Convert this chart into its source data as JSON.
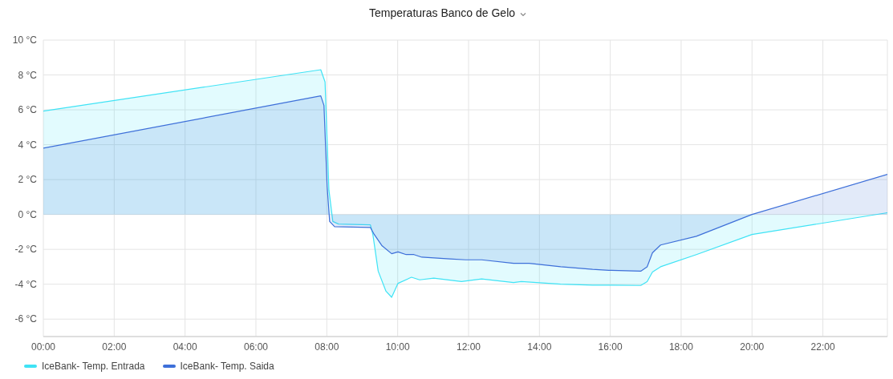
{
  "chart_data": {
    "type": "area",
    "title": "Temperaturas Banco de Gelo",
    "xlim": [
      0,
      23.82
    ],
    "xticks": [
      {
        "value": 0,
        "label": "00:00"
      },
      {
        "value": 2,
        "label": "02:00"
      },
      {
        "value": 4,
        "label": "04:00"
      },
      {
        "value": 6,
        "label": "06:00"
      },
      {
        "value": 8,
        "label": "08:00"
      },
      {
        "value": 10,
        "label": "10:00"
      },
      {
        "value": 12,
        "label": "12:00"
      },
      {
        "value": 14,
        "label": "14:00"
      },
      {
        "value": 16,
        "label": "16:00"
      },
      {
        "value": 18,
        "label": "18:00"
      },
      {
        "value": 20,
        "label": "20:00"
      },
      {
        "value": 22,
        "label": "22:00"
      }
    ],
    "ylim": [
      -7,
      10
    ],
    "yticks": [
      {
        "value": -6,
        "label": "-6 °C"
      },
      {
        "value": -4,
        "label": "-4 °C"
      },
      {
        "value": -2,
        "label": "-2 °C"
      },
      {
        "value": 0,
        "label": "0 °C"
      },
      {
        "value": 2,
        "label": "2 °C"
      },
      {
        "value": 4,
        "label": "4 °C"
      },
      {
        "value": 6,
        "label": "6 °C"
      },
      {
        "value": 8,
        "label": "8 °C"
      },
      {
        "value": 10,
        "label": "10 °C"
      }
    ],
    "grid": true,
    "legend": "bottom left",
    "marker": "none",
    "line_style": "solid",
    "series": [
      {
        "name": "IceBank- Temp. Entrada",
        "color": "#3fe3f5",
        "x": [
          0,
          7.83,
          7.95,
          8.06,
          8.17,
          8.33,
          9.23,
          9.3,
          9.45,
          9.67,
          9.83,
          10.01,
          10.39,
          10.62,
          11.02,
          11.8,
          12.37,
          13.27,
          13.49,
          14.6,
          15.5,
          15.96,
          16.86,
          17.04,
          17.19,
          17.42,
          18.43,
          20.0,
          23.82
        ],
        "values": [
          5.93,
          8.3,
          7.6,
          1.4,
          -0.4,
          -0.55,
          -0.6,
          -1.15,
          -3.25,
          -4.4,
          -4.75,
          -3.95,
          -3.6,
          -3.75,
          -3.65,
          -3.85,
          -3.7,
          -3.9,
          -3.85,
          -4.0,
          -4.05,
          -4.05,
          -4.07,
          -3.85,
          -3.3,
          -3.0,
          -2.3,
          -1.15,
          0.1
        ]
      },
      {
        "name": "IceBank- Temp. Saida",
        "color": "#3d6fd9",
        "x": [
          0,
          7.83,
          7.92,
          8.01,
          8.08,
          8.22,
          9.23,
          9.34,
          9.56,
          9.83,
          10.01,
          10.24,
          10.46,
          10.68,
          11.47,
          11.92,
          12.37,
          13.27,
          13.71,
          14.6,
          15.5,
          15.96,
          16.86,
          17.04,
          17.19,
          17.42,
          18.43,
          20.0,
          23.82
        ],
        "values": [
          3.8,
          6.8,
          6.25,
          1.6,
          -0.4,
          -0.7,
          -0.75,
          -1.15,
          -1.8,
          -2.25,
          -2.15,
          -2.3,
          -2.3,
          -2.45,
          -2.55,
          -2.6,
          -2.6,
          -2.8,
          -2.8,
          -3.0,
          -3.15,
          -3.2,
          -3.25,
          -3.0,
          -2.2,
          -1.75,
          -1.25,
          0.0,
          2.3
        ]
      }
    ]
  }
}
